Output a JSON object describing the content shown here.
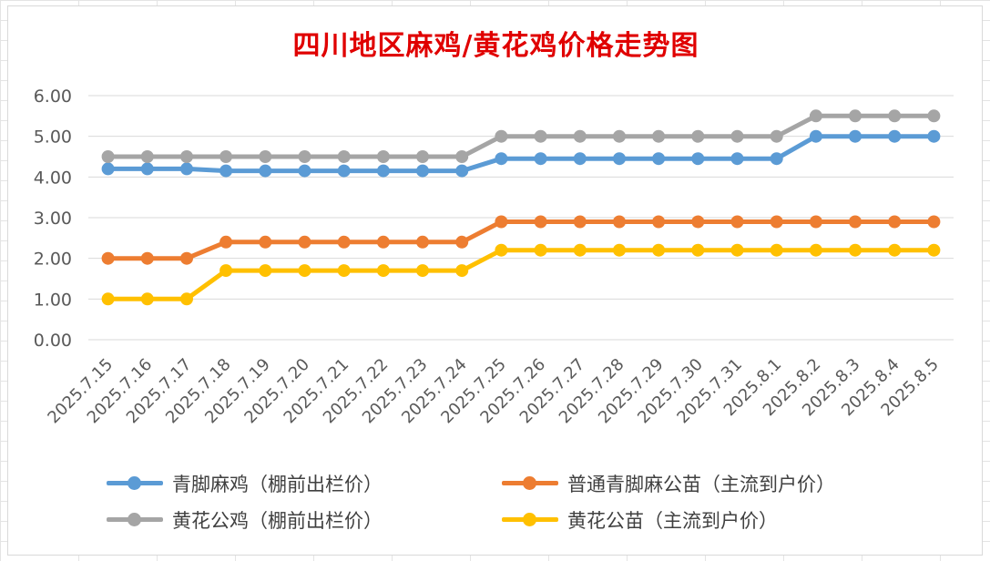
{
  "chart_data": {
    "type": "line",
    "title": "四川地区麻鸡/黄花鸡价格走势图",
    "xlabel": "",
    "ylabel": "",
    "ylim": [
      0,
      6
    ],
    "yticks": [
      "0.00",
      "1.00",
      "2.00",
      "3.00",
      "4.00",
      "5.00",
      "6.00"
    ],
    "grid": true,
    "legend_position": "bottom",
    "categories": [
      "2025.7.15",
      "2025.7.16",
      "2025.7.17",
      "2025.7.18",
      "2025.7.19",
      "2025.7.20",
      "2025.7.21",
      "2025.7.22",
      "2025.7.23",
      "2025.7.24",
      "2025.7.25",
      "2025.7.26",
      "2025.7.27",
      "2025.7.28",
      "2025.7.29",
      "2025.7.30",
      "2025.7.31",
      "2025.8.1",
      "2025.8.2",
      "2025.8.3",
      "2025.8.4",
      "2025.8.5"
    ],
    "series": [
      {
        "name": "青脚麻鸡（棚前出栏价）",
        "color": "#5b9bd5",
        "values": [
          4.2,
          4.2,
          4.2,
          4.15,
          4.15,
          4.15,
          4.15,
          4.15,
          4.15,
          4.15,
          4.45,
          4.45,
          4.45,
          4.45,
          4.45,
          4.45,
          4.45,
          4.45,
          5.0,
          5.0,
          5.0,
          5.0
        ]
      },
      {
        "name": "普通青脚麻公苗（主流到户价）",
        "color": "#ed7d31",
        "values": [
          2.0,
          2.0,
          2.0,
          2.4,
          2.4,
          2.4,
          2.4,
          2.4,
          2.4,
          2.4,
          2.9,
          2.9,
          2.9,
          2.9,
          2.9,
          2.9,
          2.9,
          2.9,
          2.9,
          2.9,
          2.9,
          2.9
        ]
      },
      {
        "name": "黄花公鸡（棚前出栏价）",
        "color": "#a5a5a5",
        "values": [
          4.5,
          4.5,
          4.5,
          4.5,
          4.5,
          4.5,
          4.5,
          4.5,
          4.5,
          4.5,
          5.0,
          5.0,
          5.0,
          5.0,
          5.0,
          5.0,
          5.0,
          5.0,
          5.5,
          5.5,
          5.5,
          5.5
        ]
      },
      {
        "name": "黄花公苗（主流到户价）",
        "color": "#ffc000",
        "values": [
          1.0,
          1.0,
          1.0,
          1.7,
          1.7,
          1.7,
          1.7,
          1.7,
          1.7,
          1.7,
          2.2,
          2.2,
          2.2,
          2.2,
          2.2,
          2.2,
          2.2,
          2.2,
          2.2,
          2.2,
          2.2,
          2.2
        ]
      }
    ]
  },
  "colors": {
    "title": "#e00000",
    "gridline": "#d9d9d9",
    "axis_text": "#595959"
  }
}
